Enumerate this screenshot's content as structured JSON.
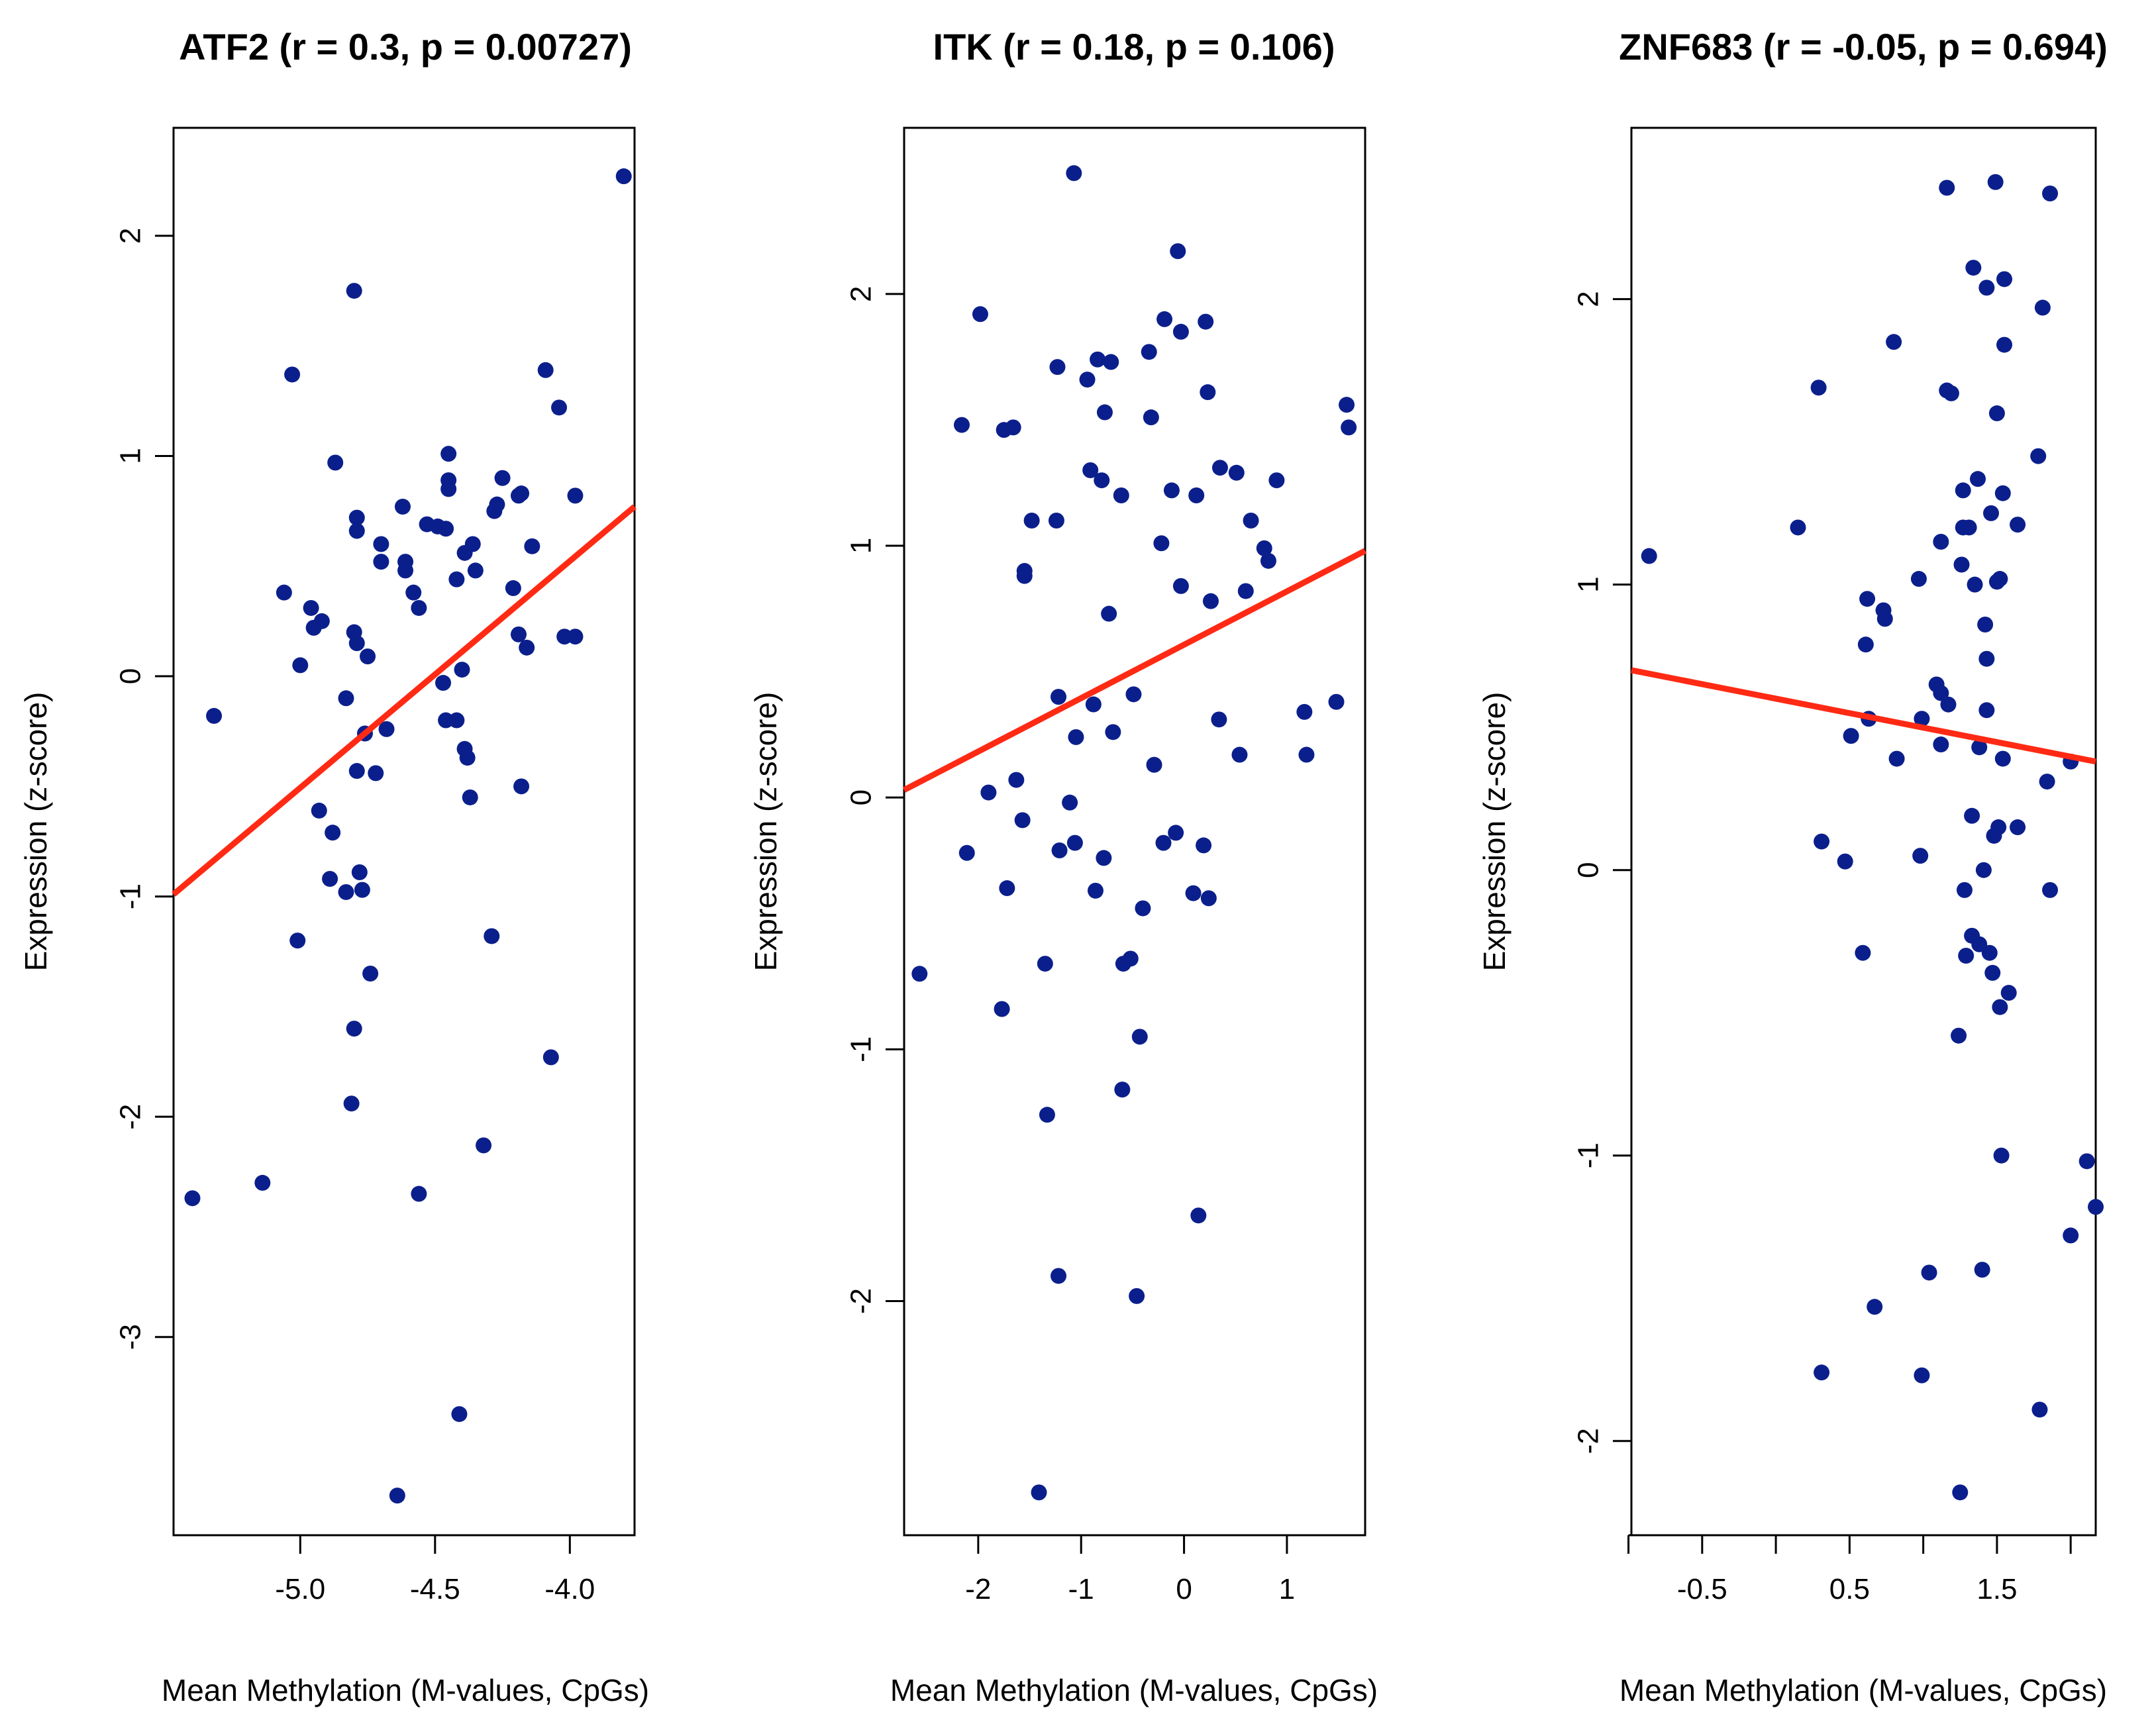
{
  "colors": {
    "point": "#0b1f8c",
    "fit_line": "#ff2a14",
    "axis": "#000000",
    "background": "#ffffff"
  },
  "chart_data": [
    {
      "type": "scatter",
      "title": "ATF2 (r = 0.3, p = 0.00727)",
      "xlabel": "Mean Methylation (M-values, CpGs)",
      "ylabel": "Expression (z-score)",
      "xlim": [
        -5.47,
        -3.76
      ],
      "ylim": [
        -3.9,
        2.49
      ],
      "xticks": [
        -5.0,
        -4.5,
        -4.0
      ],
      "xtick_labels": [
        "-5.0",
        "-4.5",
        "-4.0"
      ],
      "yticks": [
        -3,
        -2,
        -1,
        0,
        1,
        2
      ],
      "ytick_labels": [
        "-3",
        "-2",
        "-1",
        "0",
        "1",
        "2"
      ],
      "fit": [
        [
          -5.47,
          -0.99
        ],
        [
          -3.76,
          0.77
        ]
      ],
      "points": [
        [
          -5.4,
          -2.37
        ],
        [
          -5.32,
          -0.18
        ],
        [
          -5.14,
          -2.3
        ],
        [
          -5.06,
          0.38
        ],
        [
          -5.03,
          1.37
        ],
        [
          -5.01,
          -1.2
        ],
        [
          -5.0,
          0.05
        ],
        [
          -4.96,
          0.31
        ],
        [
          -4.95,
          0.22
        ],
        [
          -4.93,
          -0.61
        ],
        [
          -4.92,
          0.25
        ],
        [
          -4.89,
          -0.92
        ],
        [
          -4.88,
          -0.71
        ],
        [
          -4.87,
          0.97
        ],
        [
          -4.83,
          -0.98
        ],
        [
          -4.83,
          -0.1
        ],
        [
          -4.81,
          -1.94
        ],
        [
          -4.8,
          0.2
        ],
        [
          -4.8,
          1.75
        ],
        [
          -4.8,
          -1.6
        ],
        [
          -4.79,
          0.15
        ],
        [
          -4.79,
          0.72
        ],
        [
          -4.79,
          0.66
        ],
        [
          -4.79,
          -0.43
        ],
        [
          -4.78,
          -0.89
        ],
        [
          -4.77,
          -0.97
        ],
        [
          -4.76,
          -0.26
        ],
        [
          -4.75,
          0.09
        ],
        [
          -4.74,
          -1.35
        ],
        [
          -4.72,
          -0.44
        ],
        [
          -4.7,
          0.6
        ],
        [
          -4.7,
          0.52
        ],
        [
          -4.68,
          -0.24
        ],
        [
          -4.64,
          -3.72
        ],
        [
          -4.62,
          0.77
        ],
        [
          -4.61,
          0.52
        ],
        [
          -4.61,
          0.48
        ],
        [
          -4.58,
          0.38
        ],
        [
          -4.56,
          0.31
        ],
        [
          -4.56,
          -2.35
        ],
        [
          -4.53,
          0.69
        ],
        [
          -4.49,
          0.68
        ],
        [
          -4.47,
          -0.03
        ],
        [
          -4.46,
          0.67
        ],
        [
          -4.46,
          -0.2
        ],
        [
          -4.45,
          0.85
        ],
        [
          -4.45,
          0.89
        ],
        [
          -4.45,
          1.01
        ],
        [
          -4.42,
          -0.2
        ],
        [
          -4.42,
          0.44
        ],
        [
          -4.41,
          -3.35
        ],
        [
          -4.4,
          0.03
        ],
        [
          -4.39,
          0.56
        ],
        [
          -4.39,
          -0.33
        ],
        [
          -4.38,
          -0.37
        ],
        [
          -4.37,
          -0.55
        ],
        [
          -4.36,
          0.6
        ],
        [
          -4.35,
          0.48
        ],
        [
          -4.32,
          -2.13
        ],
        [
          -4.29,
          -1.18
        ],
        [
          -4.28,
          0.75
        ],
        [
          -4.27,
          0.78
        ],
        [
          -4.25,
          0.9
        ],
        [
          -4.21,
          0.4
        ],
        [
          -4.19,
          0.82
        ],
        [
          -4.19,
          0.19
        ],
        [
          -4.18,
          0.83
        ],
        [
          -4.18,
          -0.5
        ],
        [
          -4.16,
          0.13
        ],
        [
          -4.14,
          0.59
        ],
        [
          -4.09,
          1.39
        ],
        [
          -4.07,
          -1.73
        ],
        [
          -4.04,
          1.22
        ],
        [
          -4.02,
          0.18
        ],
        [
          -3.98,
          0.82
        ],
        [
          -3.98,
          0.18
        ],
        [
          -3.8,
          2.27
        ]
      ]
    },
    {
      "type": "scatter",
      "title": "ITK (r = 0.18, p = 0.106)",
      "xlabel": "Mean Methylation (M-values, CpGs)",
      "ylabel": "Expression (z-score)",
      "xlim": [
        -2.72,
        1.76
      ],
      "ylim": [
        -2.93,
        2.66
      ],
      "xticks": [
        -2,
        -1,
        0,
        1
      ],
      "xtick_labels": [
        "-2",
        "-1",
        "0",
        "1"
      ],
      "yticks": [
        -2,
        -1,
        0,
        1,
        2
      ],
      "ytick_labels": [
        "-2",
        "-1",
        "0",
        "1",
        "2"
      ],
      "fit": [
        [
          -2.72,
          0.03
        ],
        [
          1.76,
          0.98
        ]
      ],
      "points": [
        [
          -2.57,
          -0.7
        ],
        [
          -2.16,
          1.48
        ],
        [
          -2.11,
          -0.22
        ],
        [
          -1.98,
          1.92
        ],
        [
          -1.9,
          0.02
        ],
        [
          -1.77,
          -0.84
        ],
        [
          -1.75,
          1.46
        ],
        [
          -1.72,
          -0.36
        ],
        [
          -1.66,
          1.47
        ],
        [
          -1.63,
          0.07
        ],
        [
          -1.57,
          -0.09
        ],
        [
          -1.55,
          0.9
        ],
        [
          -1.55,
          0.88
        ],
        [
          -1.48,
          1.1
        ],
        [
          -1.41,
          -2.76
        ],
        [
          -1.35,
          -0.66
        ],
        [
          -1.33,
          -1.26
        ],
        [
          -1.24,
          1.1
        ],
        [
          -1.23,
          1.71
        ],
        [
          -1.22,
          0.4
        ],
        [
          -1.22,
          -1.9
        ],
        [
          -1.21,
          -0.21
        ],
        [
          -1.11,
          -0.02
        ],
        [
          -1.07,
          2.48
        ],
        [
          -1.06,
          -0.18
        ],
        [
          -1.05,
          0.24
        ],
        [
          -0.94,
          1.66
        ],
        [
          -0.91,
          1.3
        ],
        [
          -0.88,
          0.37
        ],
        [
          -0.86,
          -0.37
        ],
        [
          -0.84,
          1.74
        ],
        [
          -0.8,
          1.26
        ],
        [
          -0.78,
          -0.24
        ],
        [
          -0.77,
          1.53
        ],
        [
          -0.73,
          0.73
        ],
        [
          -0.71,
          1.73
        ],
        [
          -0.69,
          0.26
        ],
        [
          -0.61,
          1.2
        ],
        [
          -0.6,
          -1.16
        ],
        [
          -0.59,
          -0.66
        ],
        [
          -0.52,
          -0.64
        ],
        [
          -0.49,
          0.41
        ],
        [
          -0.46,
          -1.98
        ],
        [
          -0.43,
          -0.95
        ],
        [
          -0.4,
          -0.44
        ],
        [
          -0.34,
          1.77
        ],
        [
          -0.32,
          1.51
        ],
        [
          -0.29,
          0.13
        ],
        [
          -0.22,
          1.01
        ],
        [
          -0.2,
          -0.18
        ],
        [
          -0.19,
          1.9
        ],
        [
          -0.12,
          1.22
        ],
        [
          -0.08,
          -0.14
        ],
        [
          -0.06,
          2.17
        ],
        [
          -0.03,
          0.84
        ],
        [
          -0.03,
          1.85
        ],
        [
          0.09,
          -0.38
        ],
        [
          0.12,
          1.2
        ],
        [
          0.14,
          -1.66
        ],
        [
          0.19,
          -0.19
        ],
        [
          0.21,
          1.89
        ],
        [
          0.23,
          1.61
        ],
        [
          0.24,
          -0.4
        ],
        [
          0.26,
          0.78
        ],
        [
          0.34,
          0.31
        ],
        [
          0.35,
          1.31
        ],
        [
          0.51,
          1.29
        ],
        [
          0.54,
          0.17
        ],
        [
          0.6,
          0.82
        ],
        [
          0.65,
          1.1
        ],
        [
          0.78,
          0.99
        ],
        [
          0.82,
          0.94
        ],
        [
          0.9,
          1.26
        ],
        [
          1.17,
          0.34
        ],
        [
          1.19,
          0.17
        ],
        [
          1.48,
          0.38
        ],
        [
          1.58,
          1.56
        ],
        [
          1.6,
          1.47
        ]
      ]
    },
    {
      "type": "scatter",
      "title": "ZNF683 (r = -0.05, p = 0.694)",
      "xlabel": "Mean Methylation (M-values, CpGs)",
      "ylabel": "Expression (z-score)",
      "xlim": [
        -0.98,
        2.17
      ],
      "ylim": [
        -2.33,
        2.6
      ],
      "xticks": [
        -1.0,
        -0.5,
        0.0,
        0.5,
        1.0,
        1.5,
        2.0
      ],
      "xtick_labels": [
        "",
        "-0.5",
        "",
        "0.5",
        "",
        "1.5",
        ""
      ],
      "yticks": [
        -2,
        -1,
        0,
        1,
        2
      ],
      "ytick_labels": [
        "-2",
        "-1",
        "0",
        "1",
        "2"
      ],
      "fit": [
        [
          -0.98,
          0.7
        ],
        [
          2.17,
          0.38
        ]
      ],
      "points": [
        [
          -0.86,
          1.1
        ],
        [
          0.15,
          1.2
        ],
        [
          0.29,
          1.69
        ],
        [
          0.31,
          0.1
        ],
        [
          0.31,
          -1.76
        ],
        [
          0.47,
          0.03
        ],
        [
          0.51,
          0.47
        ],
        [
          0.59,
          -0.29
        ],
        [
          0.61,
          0.79
        ],
        [
          0.62,
          0.95
        ],
        [
          0.63,
          0.53
        ],
        [
          0.67,
          -1.53
        ],
        [
          0.73,
          0.91
        ],
        [
          0.74,
          0.88
        ],
        [
          0.8,
          1.85
        ],
        [
          0.82,
          0.39
        ],
        [
          0.97,
          1.02
        ],
        [
          0.98,
          0.05
        ],
        [
          0.99,
          0.53
        ],
        [
          0.99,
          -1.77
        ],
        [
          1.04,
          -1.41
        ],
        [
          1.09,
          0.65
        ],
        [
          1.12,
          0.62
        ],
        [
          1.12,
          0.44
        ],
        [
          1.12,
          1.15
        ],
        [
          1.16,
          2.39
        ],
        [
          1.16,
          1.68
        ],
        [
          1.17,
          0.58
        ],
        [
          1.19,
          1.67
        ],
        [
          1.24,
          -0.58
        ],
        [
          1.25,
          -2.18
        ],
        [
          1.26,
          1.07
        ],
        [
          1.27,
          1.33
        ],
        [
          1.27,
          1.2
        ],
        [
          1.28,
          -0.07
        ],
        [
          1.29,
          -0.3
        ],
        [
          1.31,
          1.2
        ],
        [
          1.33,
          0.19
        ],
        [
          1.33,
          -0.23
        ],
        [
          1.34,
          2.11
        ],
        [
          1.35,
          1.0
        ],
        [
          1.37,
          1.37
        ],
        [
          1.38,
          -0.26
        ],
        [
          1.38,
          0.43
        ],
        [
          1.4,
          -1.4
        ],
        [
          1.41,
          0.0
        ],
        [
          1.42,
          0.86
        ],
        [
          1.43,
          2.04
        ],
        [
          1.43,
          0.74
        ],
        [
          1.43,
          0.56
        ],
        [
          1.45,
          -0.29
        ],
        [
          1.46,
          1.25
        ],
        [
          1.47,
          -0.36
        ],
        [
          1.48,
          0.12
        ],
        [
          1.49,
          2.41
        ],
        [
          1.5,
          1.01
        ],
        [
          1.5,
          1.6
        ],
        [
          1.51,
          0.15
        ],
        [
          1.52,
          1.02
        ],
        [
          1.52,
          -0.48
        ],
        [
          1.53,
          -1.0
        ],
        [
          1.54,
          0.39
        ],
        [
          1.54,
          1.32
        ],
        [
          1.55,
          1.84
        ],
        [
          1.55,
          2.07
        ],
        [
          1.58,
          -0.43
        ],
        [
          1.64,
          0.15
        ],
        [
          1.64,
          1.21
        ],
        [
          1.78,
          1.45
        ],
        [
          1.79,
          -1.89
        ],
        [
          1.81,
          1.97
        ],
        [
          1.84,
          0.31
        ],
        [
          1.86,
          2.37
        ],
        [
          1.86,
          -0.07
        ],
        [
          2.0,
          0.38
        ],
        [
          2.0,
          -1.28
        ],
        [
          2.11,
          -1.02
        ],
        [
          2.17,
          -1.18
        ]
      ]
    }
  ]
}
